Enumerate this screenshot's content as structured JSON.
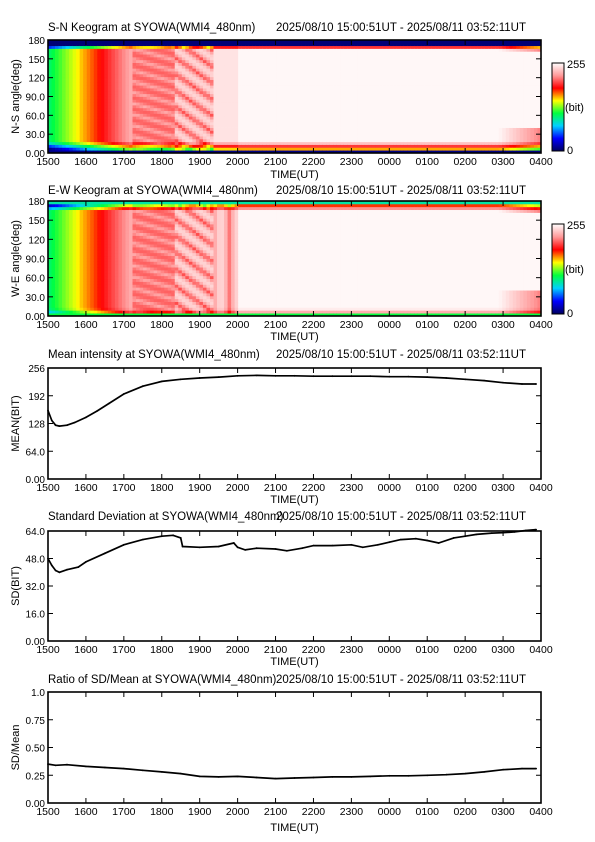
{
  "colors": {
    "keogram_stops": [
      "#000060",
      "#0000ff",
      "#00d0ff",
      "#00ff40",
      "#ffff00",
      "#ff0000",
      "#ff9999",
      "#ffffff"
    ]
  },
  "colorbar": {
    "max_label": "255",
    "min_label": "0",
    "unit_label": "(bit)"
  },
  "time_axis": {
    "label": "TIME(UT)",
    "ticks": [
      "1500",
      "1600",
      "1700",
      "1800",
      "1900",
      "2000",
      "2100",
      "2200",
      "2300",
      "0000",
      "0100",
      "0200",
      "0300",
      "0400"
    ]
  },
  "chart_data": [
    {
      "id": "sn-keogram",
      "type": "heatmap",
      "title": "S-N Keogram at SYOWA(WMI4_480nm)",
      "time_range": "2025/08/10 15:00:51UT - 2025/08/11 03:52:11UT",
      "xlabel": "TIME(UT)",
      "ylabel": "N-S angle(deg)",
      "yticks": [
        "180",
        "150",
        "120",
        "90.0",
        "60.0",
        "30.0",
        "0.00"
      ],
      "ylim": [
        0,
        180
      ],
      "xlim": [
        15.0,
        28.0
      ],
      "colorscale_range": [
        0,
        255
      ],
      "colorscale_unit": "(bit)"
    },
    {
      "id": "ew-keogram",
      "type": "heatmap",
      "title": "E-W Keogram at SYOWA(WMI4_480nm)",
      "time_range": "2025/08/10 15:00:51UT - 2025/08/11 03:52:11UT",
      "xlabel": "TIME(UT)",
      "ylabel": "W-E angle(deg)",
      "yticks": [
        "180",
        "150",
        "120",
        "90.0",
        "60.0",
        "30.0",
        "0.00"
      ],
      "ylim": [
        0,
        180
      ],
      "xlim": [
        15.0,
        28.0
      ],
      "colorscale_range": [
        0,
        255
      ],
      "colorscale_unit": "(bit)"
    },
    {
      "id": "mean",
      "type": "line",
      "title": "Mean intensity at SYOWA(WMI4_480nm)",
      "time_range": "2025/08/10 15:00:51UT - 2025/08/11 03:52:11UT",
      "xlabel": "TIME(UT)",
      "ylabel": "MEAN(BIT)",
      "yticks": [
        "256",
        "192",
        "128",
        "64.0",
        "0.00"
      ],
      "ylim": [
        0,
        256
      ],
      "xlim": [
        15.0,
        28.0
      ],
      "x": [
        15.0,
        15.1,
        15.2,
        15.3,
        15.5,
        15.7,
        16.0,
        16.3,
        16.6,
        17.0,
        17.5,
        18.0,
        18.5,
        19.0,
        19.5,
        20.0,
        20.5,
        21.0,
        21.5,
        22.0,
        22.5,
        23.0,
        23.5,
        24.0,
        24.5,
        25.0,
        25.5,
        26.0,
        26.5,
        27.0,
        27.5,
        27.87
      ],
      "y": [
        158,
        135,
        124,
        122,
        124,
        130,
        142,
        157,
        174,
        196,
        214,
        225,
        230,
        233,
        235,
        238,
        239,
        238,
        238,
        237,
        237,
        237,
        237,
        236,
        236,
        235,
        233,
        230,
        227,
        222,
        219,
        219
      ]
    },
    {
      "id": "sd",
      "type": "line",
      "title": "Standard Deviation at SYOWA(WMI4_480nm)",
      "time_range": "2025/08/10 15:00:51UT - 2025/08/11 03:52:11UT",
      "xlabel": "TIME(UT)",
      "ylabel": "SD(BIT)",
      "yticks": [
        "64.0",
        "48.0",
        "32.0",
        "16.0",
        "0.00"
      ],
      "ylim": [
        0,
        64
      ],
      "xlim": [
        15.0,
        28.0
      ],
      "x": [
        15.0,
        15.1,
        15.2,
        15.3,
        15.5,
        15.8,
        16.0,
        16.5,
        17.0,
        17.5,
        18.0,
        18.3,
        18.5,
        18.55,
        19.0,
        19.5,
        19.9,
        20.0,
        20.2,
        20.5,
        21.0,
        21.3,
        21.7,
        22.0,
        22.5,
        23.0,
        23.3,
        23.7,
        24.0,
        24.3,
        24.7,
        25.0,
        25.3,
        25.7,
        26.0,
        26.3,
        26.7,
        27.0,
        27.3,
        27.6,
        27.87
      ],
      "y": [
        48,
        44,
        41,
        40,
        41.5,
        43,
        46,
        51,
        56,
        59,
        61,
        61.5,
        60,
        55,
        54.5,
        55,
        57,
        54.5,
        53,
        54,
        53.5,
        52.5,
        54,
        55.5,
        55.5,
        56,
        54.5,
        56,
        57.5,
        59,
        59.5,
        58.5,
        57,
        60,
        61,
        62,
        62.8,
        63,
        63.5,
        64.3,
        64.8
      ]
    },
    {
      "id": "ratio",
      "type": "line",
      "title": "Ratio of SD/Mean at SYOWA(WMI4_480nm)",
      "time_range": "2025/08/10 15:00:51UT - 2025/08/11 03:52:11UT",
      "xlabel": "TIME(UT)",
      "ylabel": "SD/Mean",
      "yticks": [
        "1.0",
        "0.75",
        "0.50",
        "0.25",
        "0.00"
      ],
      "ylim": [
        0,
        1.0
      ],
      "xlim": [
        15.0,
        28.0
      ],
      "x": [
        15.0,
        15.2,
        15.5,
        16.0,
        16.5,
        17.0,
        17.5,
        18.0,
        18.5,
        19.0,
        19.5,
        20.0,
        20.5,
        21.0,
        21.5,
        22.0,
        22.5,
        23.0,
        23.5,
        24.0,
        24.5,
        25.0,
        25.5,
        26.0,
        26.5,
        27.0,
        27.5,
        27.87
      ],
      "y": [
        0.35,
        0.34,
        0.345,
        0.33,
        0.32,
        0.31,
        0.295,
        0.28,
        0.265,
        0.24,
        0.235,
        0.24,
        0.23,
        0.22,
        0.225,
        0.23,
        0.235,
        0.235,
        0.24,
        0.245,
        0.245,
        0.25,
        0.255,
        0.265,
        0.28,
        0.3,
        0.31,
        0.31
      ]
    }
  ]
}
